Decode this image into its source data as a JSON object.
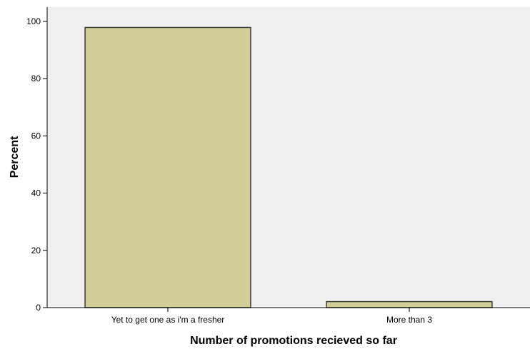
{
  "chart_data": {
    "type": "bar",
    "categories": [
      "Yet to get one as i'm a fresher",
      "More than 3"
    ],
    "values": [
      97.9,
      2.1
    ],
    "xlabel": "Number of promotions recieved so far",
    "ylabel": "Percent",
    "ylim": [
      0,
      105
    ],
    "yticks": [
      0,
      20,
      40,
      60,
      80,
      100
    ],
    "grid": false,
    "colors": {
      "bar_fill": "#d3ce97",
      "bar_stroke": "#3c3c3c",
      "plot_background": "#f0f0f0",
      "axis": "#000000"
    }
  }
}
